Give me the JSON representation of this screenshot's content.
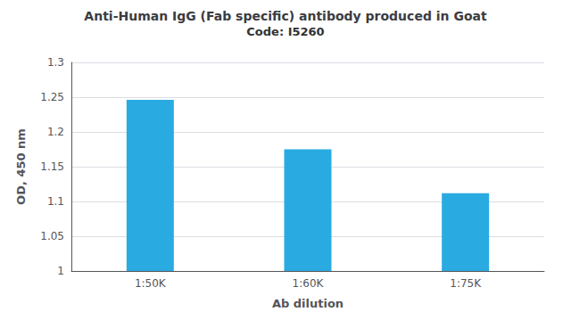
{
  "chart_data": {
    "type": "bar",
    "title": "Anti-Human IgG (Fab specific) antibody produced in Goat",
    "subtitle": "Code: I5260",
    "categories": [
      "1:50K",
      "1:60K",
      "1:75K"
    ],
    "values": [
      1.246,
      1.175,
      1.112
    ],
    "color": "#29ABE2",
    "xlabel": "Ab dilution",
    "ylabel": "OD, 450 nm",
    "ylim": [
      1.0,
      1.3
    ],
    "yticks": [
      1,
      1.05,
      1.1,
      1.15,
      1.2,
      1.25,
      1.3
    ],
    "grid": true
  }
}
